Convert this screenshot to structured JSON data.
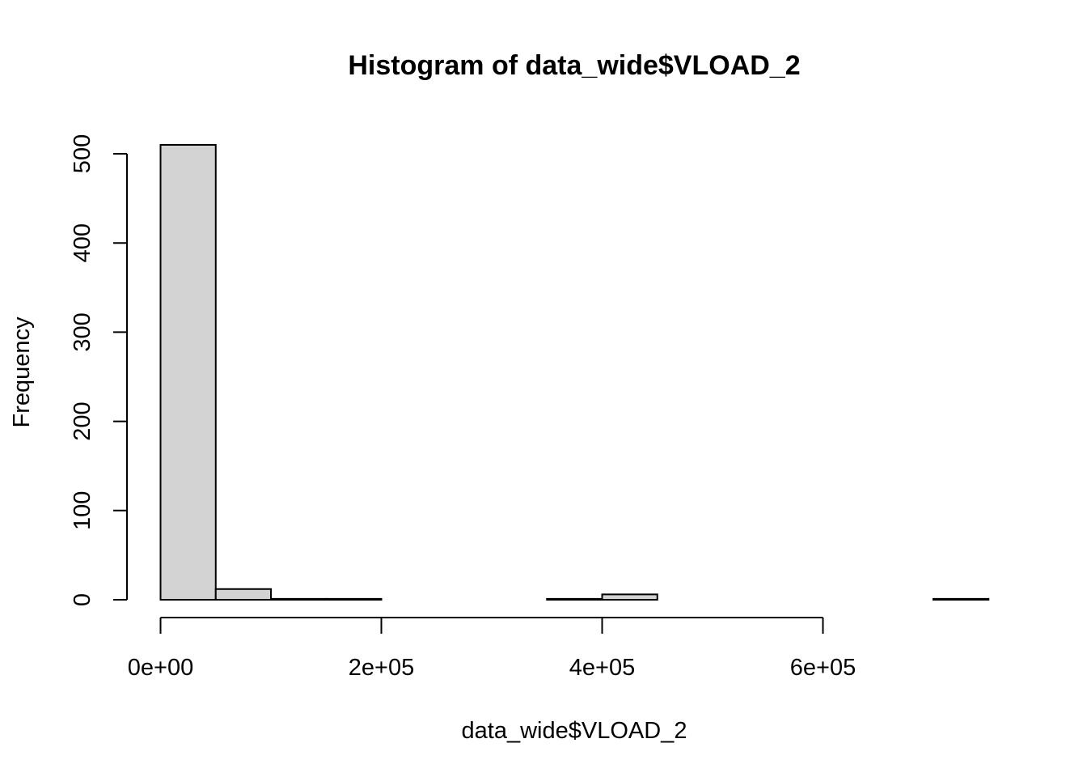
{
  "chart_data": {
    "type": "bar",
    "title": "Histogram of data_wide$VLOAD_2",
    "xlabel": "data_wide$VLOAD_2",
    "ylabel": "Frequency",
    "bar_fill": "#d3d3d3",
    "bar_stroke": "#000000",
    "bin_width": 50000,
    "bins": [
      {
        "start": 0,
        "end": 50000,
        "count": 510
      },
      {
        "start": 50000,
        "end": 100000,
        "count": 12
      },
      {
        "start": 100000,
        "end": 150000,
        "count": 1
      },
      {
        "start": 150000,
        "end": 200000,
        "count": 1
      },
      {
        "start": 200000,
        "end": 250000,
        "count": 0
      },
      {
        "start": 250000,
        "end": 300000,
        "count": 0
      },
      {
        "start": 300000,
        "end": 350000,
        "count": 0
      },
      {
        "start": 350000,
        "end": 400000,
        "count": 1
      },
      {
        "start": 400000,
        "end": 450000,
        "count": 6
      },
      {
        "start": 450000,
        "end": 500000,
        "count": 0
      },
      {
        "start": 500000,
        "end": 550000,
        "count": 0
      },
      {
        "start": 550000,
        "end": 600000,
        "count": 0
      },
      {
        "start": 600000,
        "end": 650000,
        "count": 0
      },
      {
        "start": 650000,
        "end": 700000,
        "count": 0
      },
      {
        "start": 700000,
        "end": 750000,
        "count": 1
      }
    ],
    "xlim": [
      0,
      750000
    ],
    "ylim": [
      0,
      510
    ],
    "x_ticks": [
      {
        "value": 0,
        "label": "0e+00"
      },
      {
        "value": 200000,
        "label": "2e+05"
      },
      {
        "value": 400000,
        "label": "4e+05"
      },
      {
        "value": 600000,
        "label": "6e+05"
      }
    ],
    "y_ticks": [
      {
        "value": 0,
        "label": "0"
      },
      {
        "value": 100,
        "label": "100"
      },
      {
        "value": 200,
        "label": "200"
      },
      {
        "value": 300,
        "label": "300"
      },
      {
        "value": 400,
        "label": "400"
      },
      {
        "value": 500,
        "label": "500"
      }
    ],
    "grid": false,
    "legend": "none"
  }
}
